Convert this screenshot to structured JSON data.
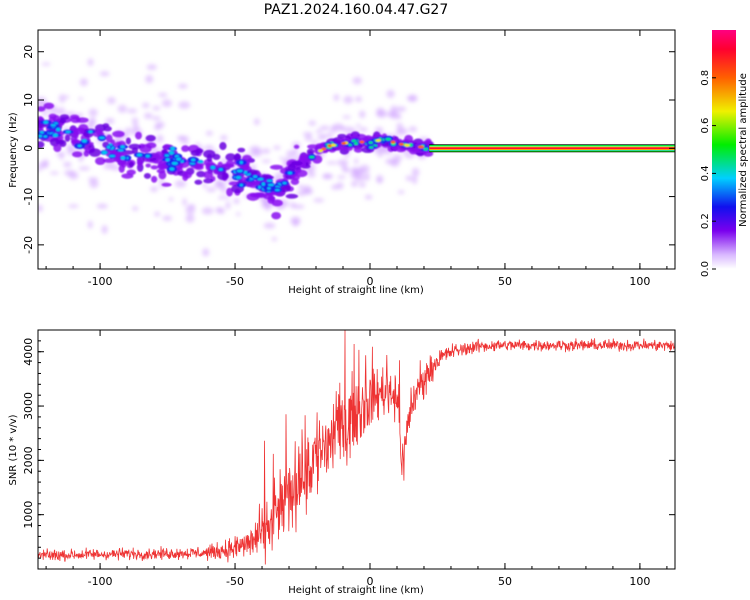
{
  "title": "PAZ1.2024.160.04.47.G27",
  "chart_data": [
    {
      "type": "heatmap",
      "xlabel": "Height of straight line (km)",
      "ylabel": "Frequency (Hz)",
      "xlim": [
        -123,
        113
      ],
      "ylim": [
        -25,
        24.5
      ],
      "xticks": [
        -100,
        -50,
        0,
        50,
        100
      ],
      "yticks": [
        20,
        10,
        0,
        -10,
        -20
      ],
      "colorbar": {
        "label": "Normalized spectral amplitude",
        "range": [
          0,
          1
        ],
        "ticks": [
          "0.0",
          "0.2",
          "0.4",
          "0.6",
          "0.8"
        ]
      },
      "band": {
        "note": "dominant spectral line",
        "points": [
          [
            -120,
            4
          ],
          [
            -110,
            3
          ],
          [
            -100,
            1
          ],
          [
            -90,
            -1
          ],
          [
            -80,
            -2
          ],
          [
            -70,
            -3
          ],
          [
            -60,
            -4
          ],
          [
            -50,
            -5
          ],
          [
            -40,
            -7
          ],
          [
            -35,
            -9
          ],
          [
            -30,
            -6
          ],
          [
            -25,
            -3
          ],
          [
            -20,
            -1
          ],
          [
            -15,
            0.5
          ],
          [
            -10,
            1
          ],
          [
            -5,
            1.5
          ],
          [
            0,
            1
          ],
          [
            5,
            2
          ],
          [
            10,
            1
          ],
          [
            15,
            0.5
          ],
          [
            20,
            0.2
          ],
          [
            25,
            0
          ],
          [
            113,
            0
          ]
        ],
        "strong_from_x": 22
      }
    },
    {
      "type": "line",
      "xlabel": "Height of straight line (km)",
      "ylabel": "SNR (10 * v/v)",
      "xlim": [
        -123,
        113
      ],
      "ylim": [
        0,
        4400
      ],
      "xticks": [
        -100,
        -50,
        0,
        50,
        100
      ],
      "yticks": [
        1000,
        2000,
        3000,
        4000
      ],
      "series": [
        {
          "color": "#ee3333",
          "x": [
            -123,
            -110,
            -100,
            -90,
            -80,
            -70,
            -60,
            -55,
            -50,
            -45,
            -40,
            -35,
            -30,
            -25,
            -20,
            -15,
            -10,
            -5,
            0,
            5,
            10,
            12,
            15,
            20,
            25,
            30,
            40,
            50,
            60,
            70,
            80,
            90,
            100,
            113
          ],
          "values": [
            250,
            260,
            270,
            280,
            280,
            290,
            300,
            340,
            380,
            470,
            650,
            980,
            1350,
            1750,
            2100,
            2350,
            2650,
            2900,
            3100,
            3300,
            3250,
            1900,
            3000,
            3500,
            3850,
            4000,
            4100,
            4120,
            4120,
            4120,
            4120,
            4120,
            4120,
            4110
          ],
          "noise": [
            90,
            90,
            90,
            90,
            90,
            90,
            110,
            140,
            200,
            280,
            380,
            500,
            600,
            700,
            750,
            700,
            650,
            550,
            450,
            400,
            450,
            400,
            350,
            250,
            160,
            120,
            100,
            90,
            90,
            90,
            90,
            90,
            90,
            90
          ]
        }
      ]
    }
  ]
}
